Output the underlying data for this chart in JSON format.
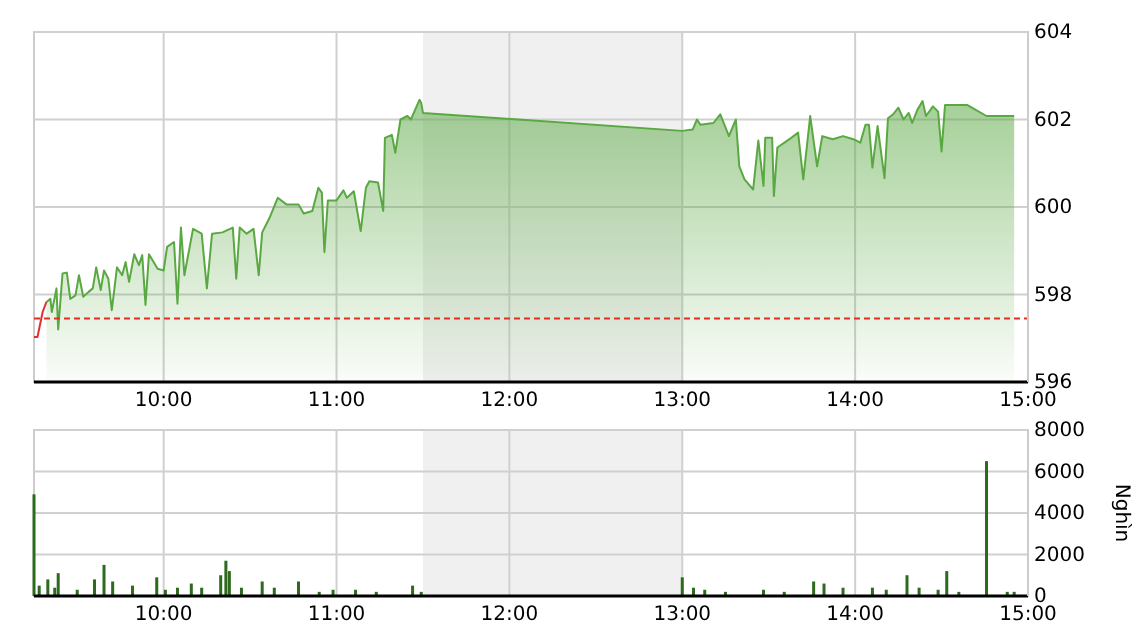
{
  "chart_data": [
    {
      "type": "area",
      "xlim": [
        9.25,
        15
      ],
      "xticks": [
        {
          "value": 10,
          "label": "10:00"
        },
        {
          "value": 11,
          "label": "11:00"
        },
        {
          "value": 12,
          "label": "12:00"
        },
        {
          "value": 13,
          "label": "13:00"
        },
        {
          "value": 14,
          "label": "14:00"
        },
        {
          "value": 15,
          "label": "15:00"
        }
      ],
      "ylim": [
        596,
        604
      ],
      "yticks": [
        596,
        598,
        600,
        602,
        604
      ],
      "grid": true,
      "bands": [
        {
          "axis": "x",
          "from": 11.5,
          "to": 13,
          "color": "#f0f0f0"
        }
      ],
      "ref_lines": [
        {
          "axis": "y",
          "value": 597.45,
          "color": "#e03020",
          "line_style": "dashed"
        }
      ],
      "series": [
        {
          "type": "line",
          "color": "#e03030",
          "x": [
            9.25,
            9.27,
            9.3,
            9.322
          ],
          "values": [
            597.03,
            597.03,
            597.6,
            597.83
          ]
        },
        {
          "color": "#5aa842",
          "x": [
            9.322,
            9.345,
            9.353,
            9.38,
            9.39,
            9.415,
            9.44,
            9.46,
            9.49,
            9.51,
            9.535,
            9.566,
            9.59,
            9.61,
            9.636,
            9.655,
            9.68,
            9.7,
            9.73,
            9.76,
            9.78,
            9.8,
            9.83,
            9.857,
            9.876,
            9.895,
            9.915,
            9.965,
            10.0,
            10.02,
            10.06,
            10.08,
            10.1,
            10.12,
            10.17,
            10.22,
            10.25,
            10.28,
            10.34,
            10.4,
            10.42,
            10.44,
            10.48,
            10.52,
            10.55,
            10.57,
            10.61,
            10.66,
            10.71,
            10.78,
            10.81,
            10.86,
            10.895,
            10.915,
            10.93,
            10.95,
            11.0,
            11.04,
            11.06,
            11.1,
            11.14,
            11.17,
            11.19,
            11.24,
            11.27,
            11.28,
            11.32,
            11.34,
            11.37,
            11.41,
            11.43,
            11.45,
            11.48,
            11.49,
            11.5,
            13.0,
            13.06,
            13.085,
            13.105,
            13.18,
            13.22,
            13.27,
            13.31,
            13.33,
            13.36,
            13.41,
            13.44,
            13.47,
            13.48,
            13.52,
            13.53,
            13.55,
            13.62,
            13.67,
            13.7,
            13.74,
            13.78,
            13.81,
            13.87,
            13.93,
            13.99,
            14.03,
            14.06,
            14.08,
            14.1,
            14.13,
            14.17,
            14.19,
            14.22,
            14.25,
            14.28,
            14.31,
            14.33,
            14.36,
            14.39,
            14.41,
            14.45,
            14.48,
            14.5,
            14.52,
            14.65,
            14.76,
            14.92
          ],
          "values": [
            597.83,
            597.9,
            597.6,
            598.14,
            597.2,
            598.48,
            598.5,
            597.9,
            597.98,
            598.44,
            597.95,
            598.06,
            598.14,
            598.62,
            598.1,
            598.55,
            598.36,
            597.64,
            598.62,
            598.44,
            598.74,
            598.29,
            598.92,
            598.67,
            598.9,
            597.76,
            598.92,
            598.59,
            598.55,
            599.09,
            599.2,
            597.79,
            599.53,
            598.44,
            599.5,
            599.39,
            598.14,
            599.39,
            599.42,
            599.53,
            598.36,
            599.53,
            599.39,
            599.5,
            598.44,
            599.42,
            599.73,
            600.21,
            600.06,
            600.06,
            599.85,
            599.91,
            600.44,
            600.33,
            598.97,
            600.15,
            600.15,
            600.38,
            600.21,
            600.36,
            599.45,
            600.44,
            600.59,
            600.56,
            599.91,
            601.58,
            601.65,
            601.24,
            602.0,
            602.08,
            602.0,
            602.18,
            602.45,
            602.38,
            602.15,
            601.74,
            601.77,
            602.0,
            601.88,
            601.92,
            602.12,
            601.62,
            602.0,
            600.93,
            600.63,
            600.4,
            601.52,
            600.48,
            601.58,
            601.58,
            600.25,
            601.36,
            601.55,
            601.7,
            600.63,
            602.08,
            600.93,
            601.62,
            601.55,
            601.62,
            601.55,
            601.47,
            601.88,
            601.88,
            600.9,
            601.85,
            600.66,
            602.03,
            602.12,
            602.27,
            602.0,
            602.15,
            601.92,
            602.22,
            602.42,
            602.08,
            602.3,
            602.18,
            601.27,
            602.33,
            602.33,
            602.08,
            602.08
          ]
        }
      ]
    },
    {
      "type": "bar",
      "xlim": [
        9.25,
        15
      ],
      "xticks": [
        {
          "value": 10,
          "label": "10:00"
        },
        {
          "value": 11,
          "label": "11:00"
        },
        {
          "value": 12,
          "label": "12:00"
        },
        {
          "value": 13,
          "label": "13:00"
        },
        {
          "value": 14,
          "label": "14:00"
        },
        {
          "value": 15,
          "label": "15:00"
        }
      ],
      "ylim": [
        0,
        8000
      ],
      "yticks": [
        0,
        2000,
        4000,
        6000,
        8000
      ],
      "ylabel": "Nghìn",
      "grid": true,
      "bands": [
        {
          "axis": "x",
          "from": 11.5,
          "to": 13,
          "color": "#f0f0f0"
        }
      ],
      "series": [
        {
          "color": "#2d6a1e",
          "x": [
            9.25,
            9.28,
            9.33,
            9.37,
            9.39,
            9.5,
            9.6,
            9.655,
            9.705,
            9.82,
            9.96,
            10.01,
            10.08,
            10.16,
            10.22,
            10.33,
            10.36,
            10.38,
            10.45,
            10.57,
            10.64,
            10.78,
            10.9,
            10.98,
            11.11,
            11.23,
            11.44,
            11.49,
            13.0,
            13.065,
            13.13,
            13.25,
            13.47,
            13.59,
            13.76,
            13.82,
            13.93,
            14.1,
            14.18,
            14.3,
            14.37,
            14.48,
            14.53,
            14.6,
            14.76,
            14.88,
            14.92
          ],
          "values": [
            4900,
            500,
            800,
            400,
            1100,
            300,
            800,
            1500,
            700,
            500,
            900,
            300,
            400,
            600,
            400,
            1000,
            1700,
            1200,
            400,
            700,
            400,
            700,
            200,
            300,
            300,
            200,
            500,
            200,
            900,
            400,
            300,
            200,
            300,
            200,
            700,
            600,
            400,
            400,
            300,
            1000,
            400,
            300,
            1200,
            200,
            6500,
            200,
            200
          ]
        }
      ]
    }
  ]
}
